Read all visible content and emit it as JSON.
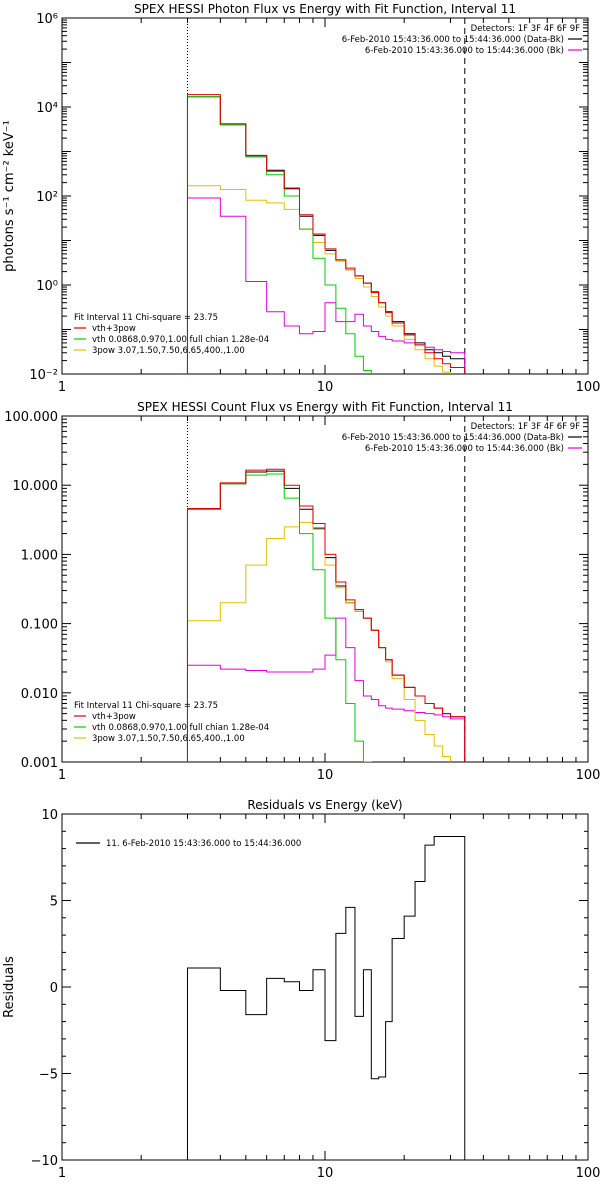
{
  "colors": {
    "data": "#000000",
    "bk": "#e000e0",
    "total": "#e00000",
    "vth": "#00d000",
    "pow": "#e0c000",
    "axis": "#000000"
  },
  "chart_data": [
    {
      "type": "line",
      "title": "SPEX HESSI Photon Flux vs Energy with Fit Function, Interval 11",
      "xlabel": "",
      "ylabel": "photons s⁻¹ cm⁻² keV⁻¹",
      "xscale": "log",
      "yscale": "log",
      "xlim": [
        1,
        100
      ],
      "ylim": [
        0.01,
        1000000
      ],
      "xticks": [
        "1",
        "10",
        "100"
      ],
      "yticks": [
        {
          "value": 0.01,
          "label": "10⁻²"
        },
        {
          "value": 1,
          "label": "10⁰"
        },
        {
          "value": 100,
          "label": "10²"
        },
        {
          "value": 10000,
          "label": "10⁴"
        },
        {
          "value": 1000000,
          "label": "10⁶"
        }
      ],
      "detectors": "Detectors: 1F 3F 4F 6F 9F",
      "legend_top": [
        {
          "text": "6-Feb-2010 15:43:36.000 to 15:44:36.000 (Data-Bk)",
          "color_key": "data"
        },
        {
          "text": "6-Feb-2010 15:43:36.000 to 15:44:36.000 (Bk)",
          "color_key": "bk"
        }
      ],
      "fit_header": "Fit Interval 11    Chi-square = 23.75",
      "legend_fit": [
        {
          "text": "vth+3pow",
          "color_key": "total"
        },
        {
          "text": "vth 0.0868,0.970,1.00   full chian 1.28e-04",
          "color_key": "vth"
        },
        {
          "text": "3pow 3.07,1.50,7.50,6.65,400.,1.00",
          "color_key": "pow"
        }
      ],
      "vlines": [
        {
          "x": 3.0,
          "style": "dotted"
        },
        {
          "x": 34.0,
          "style": "dashed"
        }
      ],
      "series": [
        {
          "name": "6-Feb-2010 15:43:36.000 to 15:44:36.000 (Data-Bk)",
          "color_key": "data",
          "edges": [
            3,
            4,
            5,
            6,
            7,
            8,
            9,
            10,
            11,
            12,
            13,
            14,
            15,
            16,
            17,
            18,
            20,
            22,
            24,
            26,
            28,
            30,
            34
          ],
          "values": [
            17000,
            4000,
            800,
            380,
            150,
            35,
            13,
            6,
            3.5,
            2.2,
            1.6,
            1.1,
            0.7,
            0.4,
            0.25,
            0.15,
            0.08,
            0.05,
            0.035,
            0.03,
            0.025,
            0.022
          ]
        },
        {
          "name": "vth+3pow",
          "color_key": "total",
          "edges": [
            3,
            4,
            5,
            6,
            7,
            8,
            9,
            10,
            11,
            12,
            13,
            14,
            15,
            16,
            17,
            18,
            20,
            22,
            24,
            26,
            28,
            30,
            34
          ],
          "values": [
            19000,
            4200,
            820,
            360,
            145,
            38,
            14,
            6.5,
            3.7,
            2.4,
            1.6,
            1.1,
            0.68,
            0.4,
            0.24,
            0.14,
            0.075,
            0.045,
            0.03,
            0.022,
            0.017,
            0.014
          ]
        },
        {
          "name": "vth 0.0868,0.970,1.00   full chian 1.28e-04",
          "color_key": "vth",
          "edges": [
            3,
            4,
            5,
            6,
            7,
            8,
            9,
            10,
            11,
            12,
            13,
            14,
            15
          ],
          "values": [
            17000,
            4000,
            750,
            300,
            100,
            18,
            4,
            1,
            0.3,
            0.08,
            0.025,
            0.012
          ]
        },
        {
          "name": "3pow 3.07,1.50,7.50,6.65,400.,1.00",
          "color_key": "pow",
          "edges": [
            3,
            4,
            5,
            6,
            7,
            8,
            9,
            10,
            11,
            12,
            13,
            14,
            15,
            16,
            17,
            18,
            20,
            22,
            24,
            26,
            28,
            30,
            34
          ],
          "values": [
            170,
            140,
            80,
            70,
            50,
            18,
            9,
            5,
            3.5,
            2.2,
            1.4,
            0.9,
            0.55,
            0.32,
            0.2,
            0.12,
            0.06,
            0.035,
            0.022,
            0.015,
            0.011,
            0.009
          ]
        },
        {
          "name": "6-Feb-2010 15:43:36.000 to 15:44:36.000 (Bk)",
          "color_key": "bk",
          "edges": [
            3,
            4,
            5,
            6,
            7,
            8,
            9,
            10,
            11,
            12,
            13,
            14,
            15,
            16,
            17,
            18,
            20,
            22,
            24,
            26,
            28,
            30,
            34
          ],
          "values": [
            90,
            35,
            1.2,
            0.25,
            0.12,
            0.08,
            0.09,
            0.4,
            0.15,
            0.15,
            0.22,
            0.12,
            0.09,
            0.07,
            0.06,
            0.055,
            0.05,
            0.045,
            0.04,
            0.035,
            0.032,
            0.03
          ]
        }
      ]
    },
    {
      "type": "line",
      "title": "SPEX HESSI Count Flux vs Energy with Fit Function, Interval 11",
      "xlabel": "",
      "ylabel": "",
      "xscale": "log",
      "yscale": "log",
      "xlim": [
        1,
        100
      ],
      "ylim": [
        0.001,
        100
      ],
      "xticks": [
        "1",
        "10",
        "100"
      ],
      "yticks": [
        {
          "value": 0.001,
          "label": "0.001"
        },
        {
          "value": 0.01,
          "label": "0.010"
        },
        {
          "value": 0.1,
          "label": "0.100"
        },
        {
          "value": 1,
          "label": "1.000"
        },
        {
          "value": 10,
          "label": "10.000"
        },
        {
          "value": 100,
          "label": "100.000"
        }
      ],
      "detectors": "Detectors: 1F 3F 4F 6F 9F",
      "legend_top": [
        {
          "text": "6-Feb-2010 15:43:36.000 to 15:44:36.000 (Data-Bk)",
          "color_key": "data"
        },
        {
          "text": "6-Feb-2010 15:43:36.000 to 15:44:36.000 (Bk)",
          "color_key": "bk"
        }
      ],
      "fit_header": "Fit Interval 11    Chi-square = 23.75",
      "legend_fit": [
        {
          "text": "vth+3pow",
          "color_key": "total"
        },
        {
          "text": "vth 0.0868,0.970,1.00   full chian 1.28e-04",
          "color_key": "vth"
        },
        {
          "text": "3pow 3.07,1.50,7.50,6.65,400.,1.00",
          "color_key": "pow"
        }
      ],
      "vlines": [
        {
          "x": 3.0,
          "style": "dotted"
        },
        {
          "x": 34.0,
          "style": "dashed"
        }
      ],
      "series": [
        {
          "name": "6-Feb-2010 15:43:36.000 to 15:44:36.000 (Data-Bk)",
          "color_key": "data",
          "edges": [
            3,
            4,
            5,
            6,
            7,
            8,
            9,
            10,
            11,
            12,
            13,
            14,
            15,
            16,
            17,
            18,
            20,
            22,
            24,
            26,
            28,
            30,
            34
          ],
          "values": [
            4.5,
            10.5,
            15.5,
            16,
            9,
            4.5,
            2.4,
            0.9,
            0.35,
            0.2,
            0.15,
            0.12,
            0.08,
            0.045,
            0.03,
            0.018,
            0.012,
            0.009,
            0.007,
            0.006,
            0.005,
            0.0045
          ]
        },
        {
          "name": "vth+3pow",
          "color_key": "total",
          "edges": [
            3,
            4,
            5,
            6,
            7,
            8,
            9,
            10,
            11,
            12,
            13,
            14,
            15,
            16,
            17,
            18,
            20,
            22,
            24,
            26,
            28,
            30,
            34
          ],
          "values": [
            4.6,
            10.8,
            16.5,
            17,
            10,
            5,
            2.8,
            1.0,
            0.4,
            0.22,
            0.16,
            0.12,
            0.08,
            0.045,
            0.03,
            0.018,
            0.012,
            0.009,
            0.007,
            0.006,
            0.005,
            0.0045
          ]
        },
        {
          "name": "vth 0.0868,0.970,1.00   full chian 1.28e-04",
          "color_key": "vth",
          "edges": [
            3,
            4,
            5,
            6,
            7,
            8,
            9,
            10,
            11,
            12,
            13,
            14,
            15
          ],
          "values": [
            4.5,
            10.5,
            14,
            14.5,
            6.5,
            2.0,
            0.6,
            0.12,
            0.03,
            0.007,
            0.002,
            0.001
          ]
        },
        {
          "name": "3pow 3.07,1.50,7.50,6.65,400.,1.00",
          "color_key": "pow",
          "edges": [
            3,
            4,
            5,
            6,
            7,
            8,
            9,
            10,
            11,
            12,
            13,
            14,
            15,
            16,
            17,
            18,
            20,
            22,
            24,
            26,
            28,
            30,
            34
          ],
          "values": [
            0.11,
            0.2,
            0.7,
            1.7,
            2.5,
            2.9,
            2.3,
            0.7,
            0.33,
            0.2,
            0.15,
            0.12,
            0.08,
            0.045,
            0.028,
            0.016,
            0.008,
            0.004,
            0.0025,
            0.0017,
            0.0012,
            0.0009
          ]
        },
        {
          "name": "6-Feb-2010 15:43:36.000 to 15:44:36.000 (Bk)",
          "color_key": "bk",
          "edges": [
            3,
            4,
            5,
            6,
            7,
            8,
            9,
            10,
            11,
            12,
            13,
            14,
            15,
            16,
            17,
            18,
            20,
            22,
            24,
            26,
            28,
            30,
            34
          ],
          "values": [
            0.025,
            0.022,
            0.021,
            0.02,
            0.02,
            0.02,
            0.022,
            0.035,
            0.12,
            0.045,
            0.015,
            0.009,
            0.008,
            0.0065,
            0.006,
            0.0058,
            0.0055,
            0.0052,
            0.005,
            0.0048,
            0.0045,
            0.0042
          ]
        }
      ]
    },
    {
      "type": "line",
      "title": "Residuals vs Energy (keV)",
      "xlabel": "",
      "ylabel": "Residuals",
      "xscale": "log",
      "yscale": "linear",
      "xlim": [
        1,
        100
      ],
      "ylim": [
        -10,
        10
      ],
      "xticks": [
        "1",
        "10",
        "100"
      ],
      "yticks": [
        {
          "value": -10,
          "label": "−10"
        },
        {
          "value": -5,
          "label": "−5"
        },
        {
          "value": 0,
          "label": "0"
        },
        {
          "value": 5,
          "label": "5"
        },
        {
          "value": 10,
          "label": "10"
        }
      ],
      "legend_top": [
        {
          "text": "11.  6-Feb-2010 15:43:36.000 to 15:44:36.000",
          "color_key": "data"
        }
      ],
      "series": [
        {
          "name": "11.  6-Feb-2010 15:43:36.000 to 15:44:36.000",
          "color_key": "data",
          "edges": [
            3,
            4,
            5,
            6,
            7,
            8,
            9,
            10,
            11,
            12,
            13,
            14,
            15,
            16,
            17,
            18,
            20,
            22,
            24,
            26,
            28,
            30,
            34
          ],
          "values": [
            1.1,
            -0.2,
            -1.6,
            0.5,
            0.3,
            -0.2,
            1.0,
            -3.1,
            3.1,
            4.6,
            -1.7,
            1.0,
            -5.3,
            -5.2,
            -2.0,
            2.8,
            4.1,
            6.1,
            8.2,
            8.7,
            8.7,
            8.7
          ],
          "drop_to_bottom": true
        }
      ]
    }
  ]
}
